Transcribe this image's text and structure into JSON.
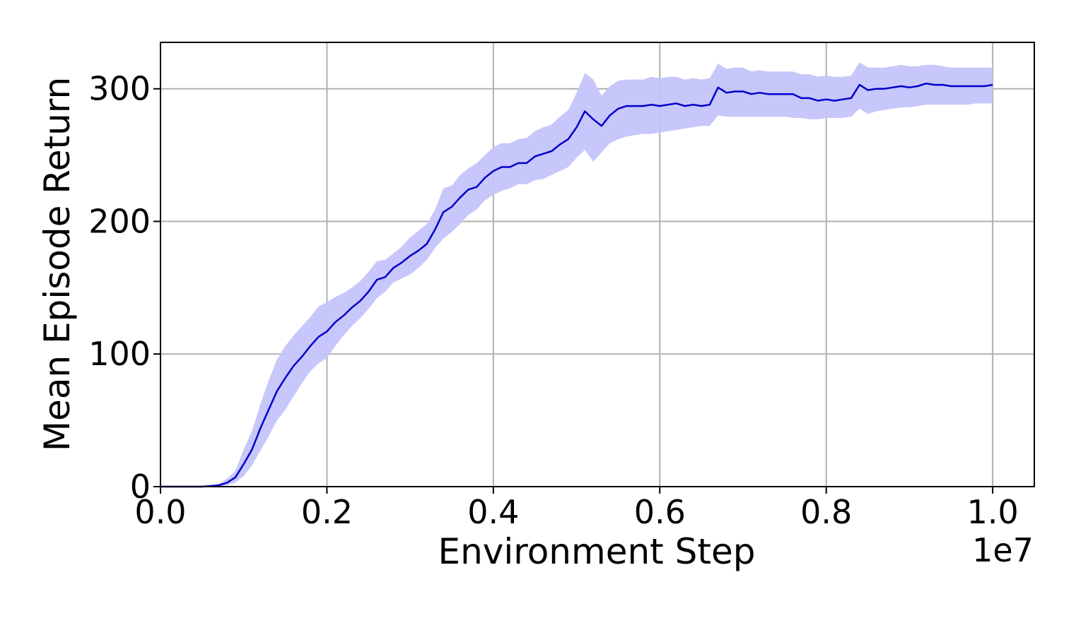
{
  "chart_data": {
    "type": "area",
    "xlabel": "Environment Step",
    "ylabel": "Mean Episode Return",
    "x_offset_label": "1e7",
    "xlim": [
      0.0,
      1.05
    ],
    "ylim": [
      0,
      335
    ],
    "x_ticks": [
      0.0,
      0.2,
      0.4,
      0.6,
      0.8,
      1.0
    ],
    "x_tick_labels": [
      "0.0",
      "0.2",
      "0.4",
      "0.6",
      "0.8",
      "1.0"
    ],
    "y_ticks": [
      0,
      100,
      200,
      300
    ],
    "y_tick_labels": [
      "0",
      "100",
      "200",
      "300"
    ],
    "grid": true,
    "colors": {
      "line": "#0000cc",
      "band": "#c4c4fb",
      "grid": "#b0b0b0",
      "axes": "#000000"
    },
    "series": [
      {
        "x": [
          0.0,
          0.05,
          0.07,
          0.08,
          0.09,
          0.1,
          0.11,
          0.12,
          0.13,
          0.14,
          0.15,
          0.16,
          0.17,
          0.18,
          0.19,
          0.2,
          0.21,
          0.22,
          0.23,
          0.24,
          0.25,
          0.26,
          0.27,
          0.28,
          0.29,
          0.3,
          0.31,
          0.32,
          0.33,
          0.34,
          0.35,
          0.36,
          0.37,
          0.38,
          0.39,
          0.4,
          0.41,
          0.42,
          0.43,
          0.44,
          0.45,
          0.46,
          0.47,
          0.48,
          0.49,
          0.5,
          0.51,
          0.52,
          0.53,
          0.54,
          0.55,
          0.56,
          0.57,
          0.58,
          0.59,
          0.6,
          0.61,
          0.62,
          0.63,
          0.64,
          0.65,
          0.66,
          0.67,
          0.68,
          0.69,
          0.7,
          0.71,
          0.72,
          0.73,
          0.74,
          0.75,
          0.76,
          0.77,
          0.78,
          0.79,
          0.8,
          0.81,
          0.82,
          0.83,
          0.84,
          0.85,
          0.86,
          0.87,
          0.88,
          0.89,
          0.9,
          0.91,
          0.92,
          0.93,
          0.94,
          0.95,
          0.96,
          0.97,
          0.98,
          0.99,
          1.0
        ],
        "mean": [
          0,
          0,
          1,
          3,
          7,
          17,
          28,
          44,
          58,
          72,
          82,
          91,
          98,
          106,
          113,
          117,
          124,
          129,
          135,
          140,
          147,
          156,
          158,
          165,
          169,
          174,
          178,
          183,
          194,
          207,
          211,
          218,
          224,
          226,
          233,
          238,
          241,
          241,
          244,
          244,
          249,
          251,
          253,
          258,
          262,
          271,
          283,
          277,
          272,
          280,
          285,
          287,
          287,
          287,
          288,
          287,
          288,
          289,
          287,
          288,
          287,
          288,
          301,
          297,
          298,
          298,
          296,
          297,
          296,
          296,
          296,
          296,
          293,
          293,
          291,
          292,
          291,
          292,
          293,
          303,
          299,
          300,
          300,
          301,
          302,
          301,
          302,
          304,
          303,
          303,
          302,
          302,
          302,
          302,
          302,
          303
        ],
        "lower": [
          0,
          0,
          0,
          1,
          3,
          8,
          16,
          27,
          38,
          50,
          58,
          68,
          78,
          87,
          93,
          97,
          106,
          114,
          121,
          127,
          134,
          142,
          147,
          154,
          157,
          160,
          165,
          171,
          180,
          187,
          192,
          198,
          205,
          209,
          216,
          220,
          223,
          225,
          228,
          228,
          231,
          232,
          235,
          238,
          241,
          248,
          254,
          245,
          252,
          259,
          262,
          264,
          265,
          266,
          266,
          267,
          268,
          269,
          270,
          271,
          272,
          272,
          280,
          279,
          279,
          279,
          279,
          279,
          279,
          279,
          279,
          278,
          278,
          277,
          277,
          278,
          278,
          278,
          279,
          285,
          281,
          283,
          284,
          285,
          286,
          286,
          287,
          288,
          288,
          288,
          288,
          288,
          288,
          289,
          289,
          289
        ],
        "upper": [
          0,
          0,
          2,
          6,
          12,
          28,
          42,
          62,
          80,
          96,
          106,
          114,
          121,
          128,
          136,
          139,
          143,
          146,
          150,
          155,
          162,
          170,
          171,
          176,
          181,
          188,
          193,
          198,
          209,
          225,
          227,
          235,
          240,
          244,
          250,
          256,
          259,
          259,
          262,
          263,
          268,
          271,
          273,
          279,
          284,
          297,
          312,
          307,
          295,
          302,
          306,
          307,
          307,
          307,
          309,
          308,
          309,
          309,
          307,
          308,
          307,
          308,
          319,
          315,
          316,
          316,
          313,
          314,
          313,
          313,
          313,
          313,
          311,
          311,
          309,
          310,
          309,
          309,
          310,
          320,
          316,
          316,
          316,
          317,
          318,
          317,
          317,
          318,
          318,
          317,
          316,
          316,
          316,
          316,
          316,
          316
        ]
      }
    ]
  }
}
